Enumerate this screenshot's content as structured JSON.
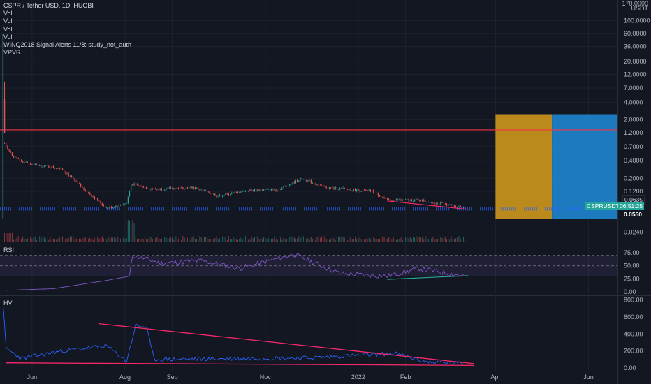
{
  "header": {
    "symbol_line": "CSPR / Tether USD, 1D, HUOBI",
    "indicators": [
      "Vol",
      "Vol",
      "Vol",
      "Vol",
      "WINQ2018 Signal Alerts 11/8: study_not_auth",
      "VPVR"
    ]
  },
  "price_axis": {
    "unit_top": "170.0000",
    "unit": "USDT",
    "ticks": [
      "100.0000",
      "60.0000",
      "36.0000",
      "20.0000",
      "12.0000",
      "7.0000",
      "4.0000",
      "2.0000",
      "1.2000",
      "0.7000",
      "0.4000",
      "0.2000",
      "0.1200",
      "0.0635",
      "0.0550",
      "0.0240"
    ]
  },
  "price_tags": {
    "last": "0.0635",
    "symbol_tag": "CSPRUSDT",
    "countdown": "06:51:25",
    "low": "0.0550"
  },
  "rsi": {
    "title": "RSI",
    "ticks": [
      "75.00",
      "50.00",
      "25.00",
      "0.00"
    ]
  },
  "hv": {
    "title": "HV",
    "ticks": [
      "800.00",
      "600.00",
      "400.00",
      "200.00",
      "0.00"
    ]
  },
  "time_axis": [
    "Jun",
    "Aug",
    "Sep",
    "Nov",
    "2022",
    "Feb",
    "Apr",
    "Jun"
  ],
  "colors": {
    "background": "#131722",
    "up": "#26a69a",
    "down": "#ef5350",
    "resistance": "#f23645",
    "rsi_line": "#7e57c2",
    "hv_line": "#2962ff",
    "trendline": "#f7296a",
    "rsi_support": "#26a69a",
    "stop_zone": "#c4901d",
    "target_zone": "#1e7fc8"
  },
  "chart_data": {
    "type": "candlestick",
    "title": "CSPR / Tether USD, 1D, HUOBI",
    "y_scale": "log",
    "ylim": [
      0.02,
      170
    ],
    "x_range": [
      "2021-05-11",
      "2022-06-20"
    ],
    "series": [
      {
        "name": "CSPR / Tether USD",
        "approx_close": [
          {
            "x": "2021-05-12",
            "y": 4.5
          },
          {
            "x": "2021-05-14",
            "y": 0.8
          },
          {
            "x": "2021-05-20",
            "y": 0.45
          },
          {
            "x": "2021-06-01",
            "y": 0.34
          },
          {
            "x": "2021-06-20",
            "y": 0.3
          },
          {
            "x": "2021-07-01",
            "y": 0.16
          },
          {
            "x": "2021-07-20",
            "y": 0.062
          },
          {
            "x": "2021-08-02",
            "y": 0.075
          },
          {
            "x": "2021-08-05",
            "y": 0.16
          },
          {
            "x": "2021-08-20",
            "y": 0.13
          },
          {
            "x": "2021-09-15",
            "y": 0.14
          },
          {
            "x": "2021-10-01",
            "y": 0.1
          },
          {
            "x": "2021-10-20",
            "y": 0.125
          },
          {
            "x": "2021-11-10",
            "y": 0.13
          },
          {
            "x": "2021-11-25",
            "y": 0.2
          },
          {
            "x": "2021-12-10",
            "y": 0.14
          },
          {
            "x": "2021-12-25",
            "y": 0.13
          },
          {
            "x": "2022-01-10",
            "y": 0.12
          },
          {
            "x": "2022-01-20",
            "y": 0.085
          },
          {
            "x": "2022-02-10",
            "y": 0.085
          },
          {
            "x": "2022-03-01",
            "y": 0.07
          },
          {
            "x": "2022-03-12",
            "y": 0.0635
          }
        ]
      },
      {
        "name": "RSI",
        "approx_values": [
          {
            "x": "2021-05-15",
            "y": 3
          },
          {
            "x": "2021-06-15",
            "y": 6
          },
          {
            "x": "2021-07-20",
            "y": 22
          },
          {
            "x": "2021-08-04",
            "y": 30
          },
          {
            "x": "2021-08-06",
            "y": 70
          },
          {
            "x": "2021-08-25",
            "y": 55
          },
          {
            "x": "2021-09-20",
            "y": 60
          },
          {
            "x": "2021-10-15",
            "y": 45
          },
          {
            "x": "2021-11-20",
            "y": 72
          },
          {
            "x": "2021-12-20",
            "y": 35
          },
          {
            "x": "2022-01-20",
            "y": 30
          },
          {
            "x": "2022-02-10",
            "y": 45
          },
          {
            "x": "2022-03-12",
            "y": 30
          }
        ]
      },
      {
        "name": "HV",
        "approx_values": [
          {
            "x": "2021-05-13",
            "y": 760
          },
          {
            "x": "2021-05-15",
            "y": 230
          },
          {
            "x": "2021-05-25",
            "y": 110
          },
          {
            "x": "2021-06-20",
            "y": 200
          },
          {
            "x": "2021-07-20",
            "y": 260
          },
          {
            "x": "2021-08-02",
            "y": 80
          },
          {
            "x": "2021-08-08",
            "y": 500
          },
          {
            "x": "2021-08-15",
            "y": 480
          },
          {
            "x": "2021-08-20",
            "y": 100
          },
          {
            "x": "2021-10-15",
            "y": 110
          },
          {
            "x": "2021-12-01",
            "y": 120
          },
          {
            "x": "2022-01-25",
            "y": 170
          },
          {
            "x": "2022-02-15",
            "y": 70
          },
          {
            "x": "2022-03-12",
            "y": 50
          }
        ]
      }
    ],
    "annotations": {
      "resistance_level": 1.35,
      "last_price": 0.0635,
      "low_marker": 0.055,
      "rsi_levels": [
        70,
        50,
        30
      ],
      "price_trendline": [
        {
          "x": "2022-01-20",
          "y": 0.082
        },
        {
          "x": "2022-03-14",
          "y": 0.059
        }
      ],
      "rsi_trendline": [
        {
          "x": "2022-01-20",
          "y": 24
        },
        {
          "x": "2022-03-14",
          "y": 31
        }
      ],
      "hv_trendlines": [
        {
          "from": {
            "x": "2021-07-15",
            "y": 520
          },
          "to": {
            "x": "2022-03-18",
            "y": 50
          }
        },
        {
          "from": {
            "x": "2021-05-15",
            "y": 60
          },
          "to": {
            "x": "2022-03-18",
            "y": 30
          }
        }
      ],
      "position_zones": {
        "x_range": [
          "2022-04-01",
          "2022-06-20"
        ],
        "y_range": [
          0.04,
          2.5
        ],
        "split_date": "2022-05-08"
      }
    },
    "grid": true,
    "legend": "top-left"
  }
}
